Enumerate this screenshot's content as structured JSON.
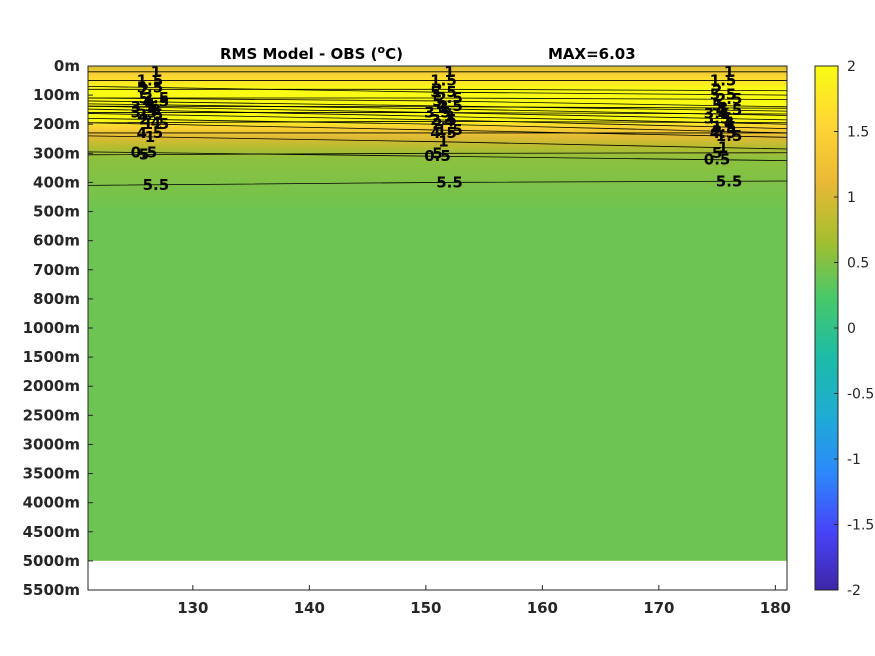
{
  "chart_data": {
    "type": "heatmap",
    "title": "RMS Model - OBS (",
    "title_sup": "o",
    "title_end": "C)",
    "max_label": "MAX=6.03",
    "xlabel": "",
    "ylabel": "",
    "xlim": [
      121,
      181
    ],
    "x_ticks": [
      130,
      140,
      150,
      160,
      170,
      180
    ],
    "y_ticks": [
      "0m",
      "100m",
      "200m",
      "300m",
      "400m",
      "500m",
      "600m",
      "700m",
      "800m",
      "1000m",
      "1500m",
      "2000m",
      "2500m",
      "3000m",
      "3500m",
      "4000m",
      "4500m",
      "5000m",
      "5500m"
    ],
    "data_bottom_tick": "5000m",
    "colorbar": {
      "clim": [
        -2,
        2
      ],
      "ticks": [
        "2",
        "1.5",
        "1",
        "0.5",
        "0",
        "-0.5",
        "-1",
        "-1.5",
        "-2"
      ],
      "colormap": [
        "#3e26a8",
        "#4743f8",
        "#2c88fb",
        "#1eacd3",
        "#1cbca7",
        "#47c86a",
        "#a5be2f",
        "#e9b935",
        "#fed634",
        "#f9fb14"
      ]
    },
    "contours": [
      {
        "level": 0.5,
        "label": "0.5",
        "depths": [
          2.95,
          3.1,
          3.25
        ]
      },
      {
        "level": 1,
        "label": "1",
        "depths": [
          2.4,
          2.6,
          2.85
        ]
      },
      {
        "level": 1.5,
        "label": "1.5",
        "depths": [
          1.95,
          2.2,
          2.45
        ]
      },
      {
        "level": 2,
        "label": "2",
        "depths": [
          1.8,
          2.0,
          2.3
        ]
      },
      {
        "level": 2.5,
        "label": "2.5",
        "depths": [
          1.63,
          1.85,
          2.15
        ]
      },
      {
        "level": 3,
        "label": "3",
        "depths": [
          1.48,
          1.73,
          2.0
        ]
      },
      {
        "level": 3.5,
        "label": "3.5",
        "depths": [
          1.38,
          1.6,
          1.85
        ]
      },
      {
        "level": 4,
        "label": "4",
        "depths": [
          1.3,
          1.47,
          1.7
        ]
      },
      {
        "level": 4.5,
        "label": "4.5",
        "depths": [
          1.2,
          1.37,
          1.55
        ]
      },
      {
        "level": 5,
        "label": "5",
        "depths": [
          1.1,
          1.2,
          1.4
        ]
      },
      {
        "level": 5.5,
        "label": "5.5",
        "depths": [
          0.7,
          0.9,
          1.0
        ]
      },
      {
        "level": 5.5,
        "label": "5.5",
        "depths": [
          4.1,
          4.0,
          3.95
        ]
      },
      {
        "level": 5,
        "label": "5",
        "depths": [
          3.05,
          3.0,
          2.98
        ]
      },
      {
        "level": 4.5,
        "label": "4.5",
        "depths": [
          2.3,
          2.3,
          2.3
        ]
      },
      {
        "level": 4,
        "label": "4",
        "depths": [
          1.95,
          1.9,
          1.95
        ]
      },
      {
        "level": 3.5,
        "label": "3.5",
        "depths": [
          1.6,
          1.6,
          1.65
        ]
      },
      {
        "level": 3,
        "label": "3",
        "depths": [
          1.38,
          1.4,
          1.45
        ]
      },
      {
        "level": 2.5,
        "label": "2.5",
        "depths": [
          1.1,
          1.1,
          1.15
        ]
      },
      {
        "level": 2,
        "label": "2",
        "depths": [
          0.8,
          0.8,
          0.85
        ]
      },
      {
        "level": 1.5,
        "label": "1.5",
        "depths": [
          0.5,
          0.5,
          0.5
        ]
      },
      {
        "level": 1,
        "label": "1",
        "depths": [
          0.2,
          0.2,
          0.2
        ]
      }
    ],
    "fill_profile": [
      {
        "depth": 0.0,
        "value": 1.0
      },
      {
        "depth": 0.35,
        "value": 1.55
      },
      {
        "depth": 0.8,
        "value": 2.0
      },
      {
        "depth": 1.85,
        "value": 2.0
      },
      {
        "depth": 2.1,
        "value": 1.5
      },
      {
        "depth": 2.45,
        "value": 1.05
      },
      {
        "depth": 2.8,
        "value": 0.75
      },
      {
        "depth": 3.2,
        "value": 0.55
      },
      {
        "depth": 4.5,
        "value": 0.45
      },
      {
        "depth": 5.0,
        "value": 0.4
      }
    ],
    "grid": false
  }
}
